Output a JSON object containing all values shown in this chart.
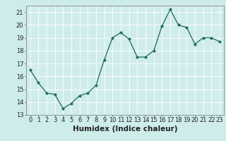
{
  "x": [
    0,
    1,
    2,
    3,
    4,
    5,
    6,
    7,
    8,
    9,
    10,
    11,
    12,
    13,
    14,
    15,
    16,
    17,
    18,
    19,
    20,
    21,
    22,
    23
  ],
  "y": [
    16.5,
    15.5,
    14.7,
    14.6,
    13.5,
    13.9,
    14.5,
    14.7,
    15.3,
    17.3,
    19.0,
    19.4,
    18.9,
    17.5,
    17.5,
    18.0,
    19.9,
    21.2,
    20.0,
    19.8,
    18.5,
    19.0,
    19.0,
    18.7
  ],
  "xlabel": "Humidex (Indice chaleur)",
  "ylim": [
    13,
    21.5
  ],
  "xlim": [
    -0.5,
    23.5
  ],
  "yticks": [
    13,
    14,
    15,
    16,
    17,
    18,
    19,
    20,
    21
  ],
  "xticks": [
    0,
    1,
    2,
    3,
    4,
    5,
    6,
    7,
    8,
    9,
    10,
    11,
    12,
    13,
    14,
    15,
    16,
    17,
    18,
    19,
    20,
    21,
    22,
    23
  ],
  "line_color": "#1a6b5a",
  "marker": "D",
  "marker_size": 2.0,
  "bg_color": "#ceecea",
  "grid_color": "#ffffff",
  "axis_color": "#888888",
  "font_color": "#222222",
  "xlabel_fontsize": 7.5,
  "tick_fontsize": 6.0
}
